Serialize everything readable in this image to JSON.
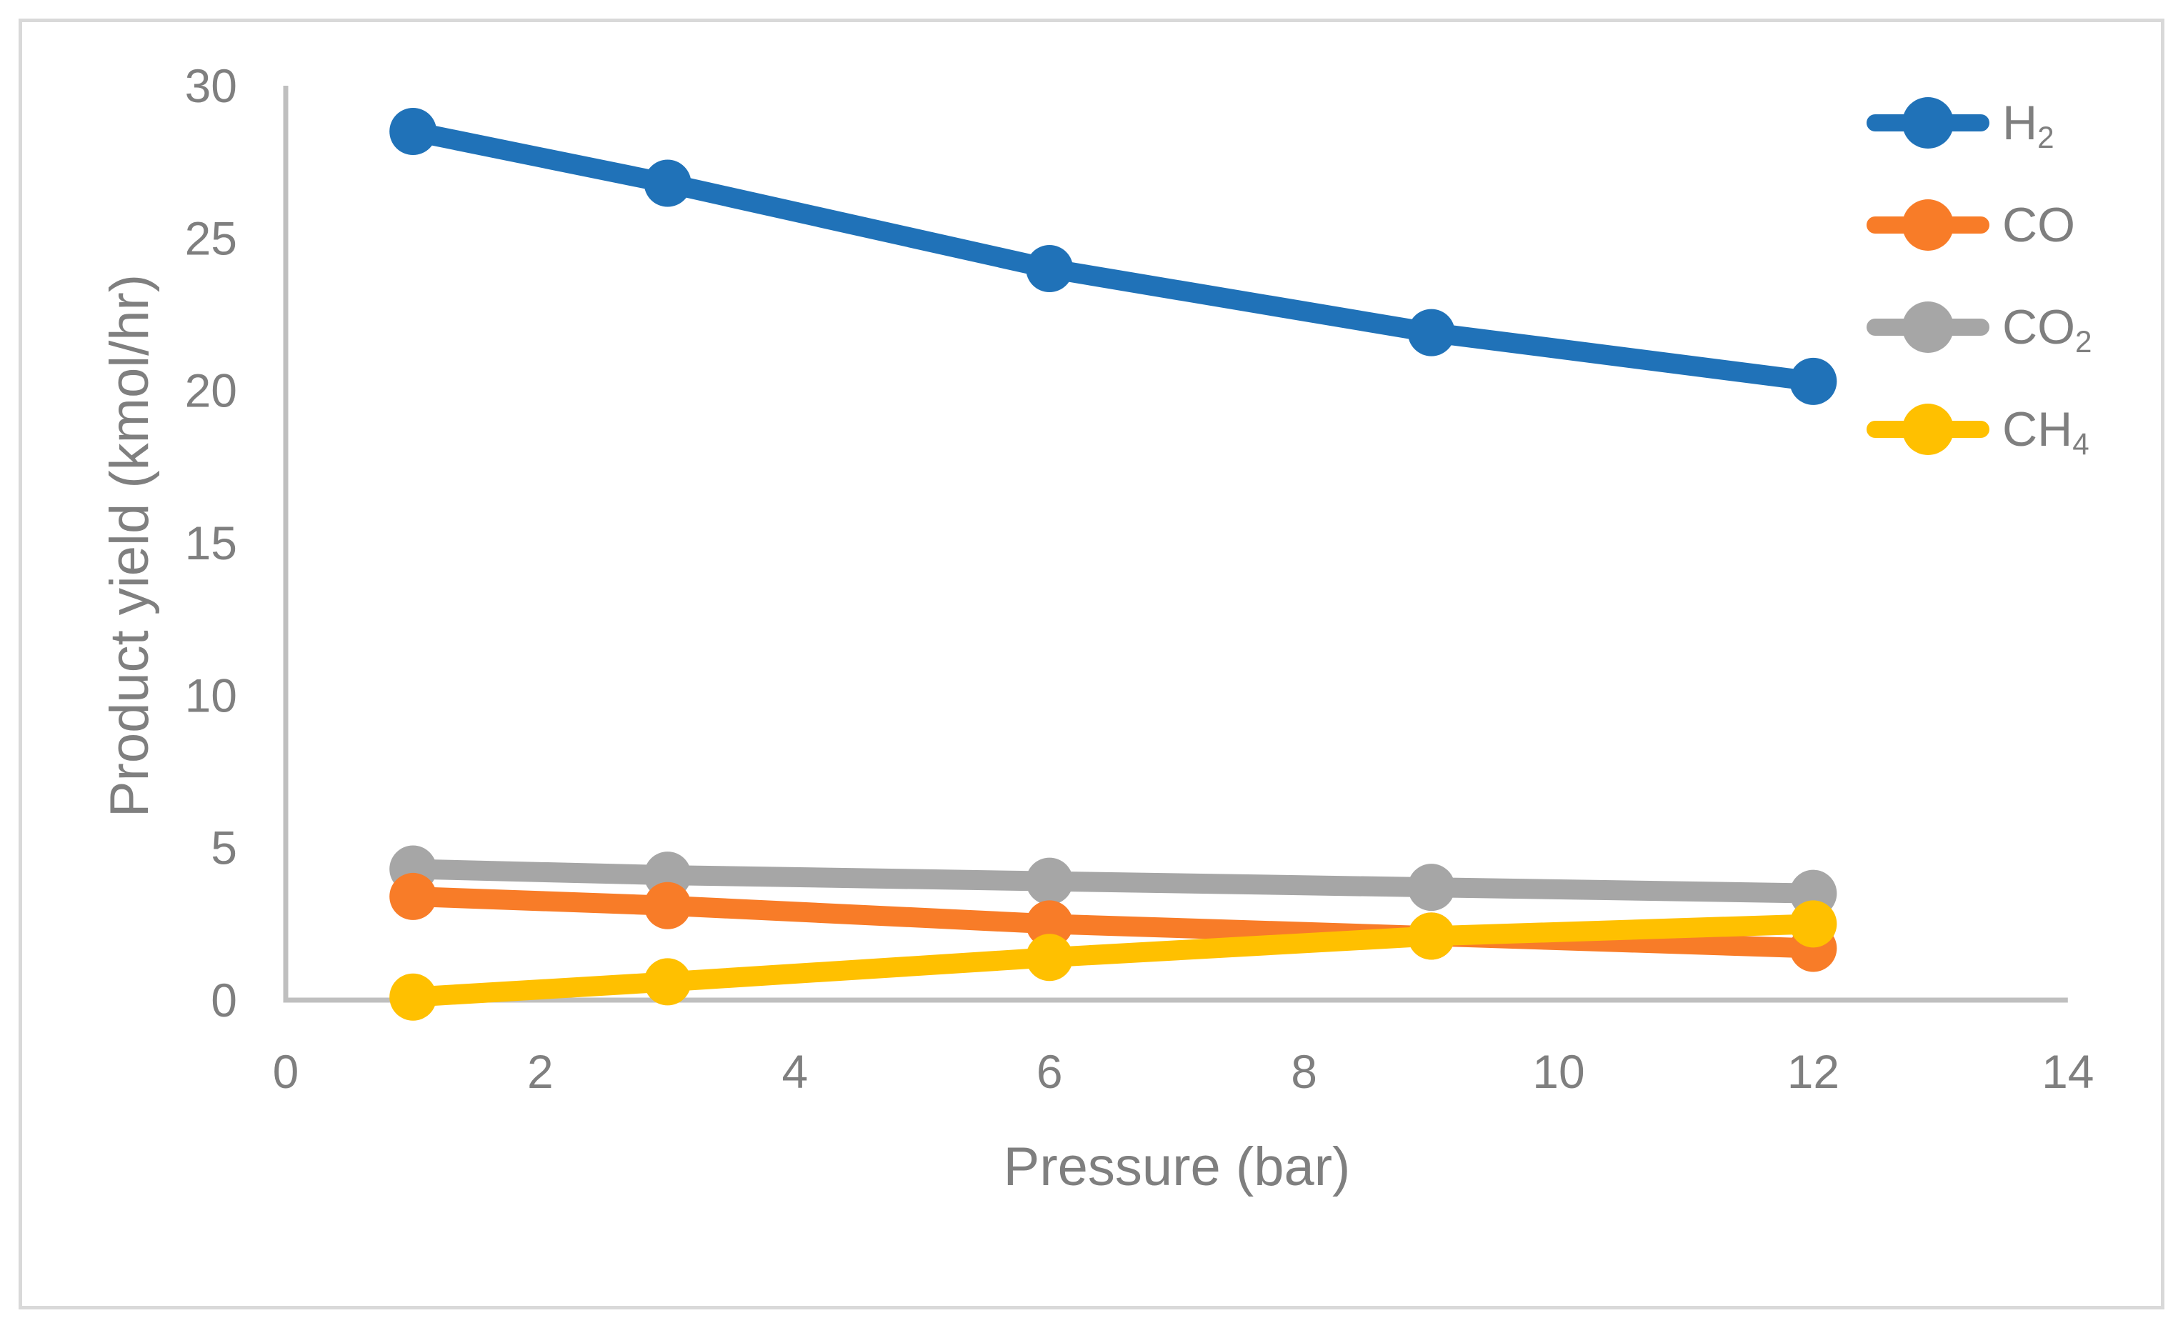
{
  "figure": {
    "background": "#FFFFFF",
    "border_color": "#D9D9D9"
  },
  "chart_data": {
    "type": "line",
    "title": "",
    "xlabel": "Pressure (bar)",
    "ylabel": "Product yield (kmol/hr)",
    "xlim": [
      0,
      14
    ],
    "ylim": [
      0,
      30
    ],
    "x_ticks": [
      0,
      2,
      4,
      6,
      8,
      10,
      12,
      14
    ],
    "y_ticks": [
      0,
      5,
      10,
      15,
      20,
      25,
      30
    ],
    "grid": false,
    "legend_position": "right",
    "axis_line_color": "#BFBFBF",
    "text_color": "#7F7F7F",
    "x": [
      1,
      3,
      6,
      9,
      12
    ],
    "series": [
      {
        "id": "H2",
        "label_parts": [
          {
            "text": "H"
          },
          {
            "text": "2",
            "sub": true
          }
        ],
        "color": "#2072B8",
        "values": [
          28.5,
          26.8,
          24.0,
          21.9,
          20.3
        ]
      },
      {
        "id": "CO",
        "label_parts": [
          {
            "text": "CO"
          }
        ],
        "color": "#F87C28",
        "values": [
          3.4,
          3.1,
          2.5,
          2.1,
          1.7
        ]
      },
      {
        "id": "CO2",
        "label_parts": [
          {
            "text": "CO"
          },
          {
            "text": "2",
            "sub": true
          }
        ],
        "color": "#A6A6A6",
        "values": [
          4.3,
          4.1,
          3.9,
          3.7,
          3.5
        ]
      },
      {
        "id": "CH4",
        "label_parts": [
          {
            "text": "CH"
          },
          {
            "text": "4",
            "sub": true
          }
        ],
        "color": "#FFC000",
        "values": [
          0.1,
          0.6,
          1.4,
          2.1,
          2.5
        ]
      }
    ],
    "draw_order": [
      "H2",
      "CO2",
      "CO",
      "CH4"
    ]
  }
}
